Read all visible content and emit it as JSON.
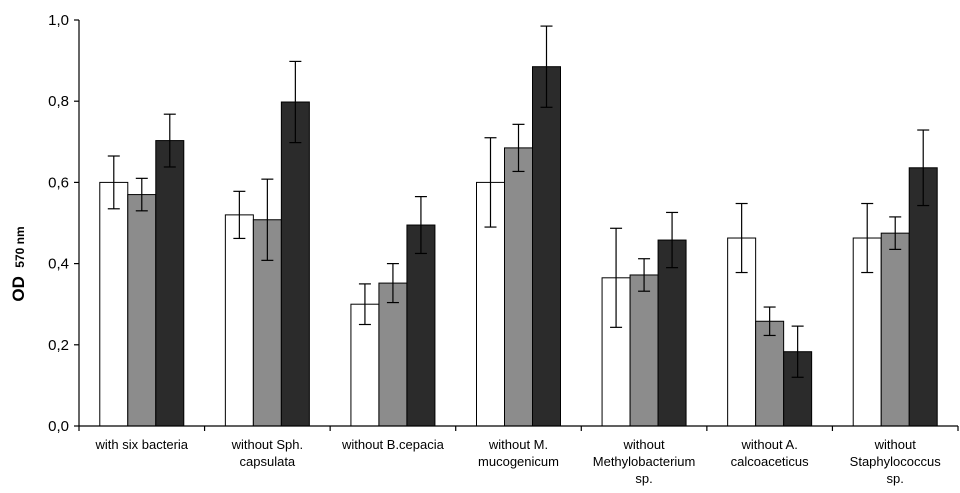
{
  "chart_data": {
    "type": "bar",
    "ylabel_main": "OD",
    "ylabel_sub": "570 nm",
    "ylim": [
      0,
      1.0
    ],
    "yticks": [
      "0,0",
      "0,2",
      "0,4",
      "0,6",
      "0,8",
      "1,0"
    ],
    "categories": [
      [
        "with six bacteria"
      ],
      [
        "without Sph.",
        "capsulata"
      ],
      [
        "without B.cepacia"
      ],
      [
        "without M.",
        "mucogenicum"
      ],
      [
        "without",
        "Methylobacterium",
        "sp."
      ],
      [
        "without A.",
        "calcoaceticus"
      ],
      [
        "without",
        "Staphylococcus",
        "sp."
      ]
    ],
    "series": [
      {
        "color": "#ffffff",
        "values": [
          0.6,
          0.52,
          0.3,
          0.6,
          0.365,
          0.463,
          0.463
        ],
        "errors": [
          0.065,
          0.058,
          0.05,
          0.11,
          0.122,
          0.085,
          0.085
        ]
      },
      {
        "color": "#8c8c8c",
        "values": [
          0.57,
          0.508,
          0.352,
          0.685,
          0.372,
          0.258,
          0.475
        ],
        "errors": [
          0.04,
          0.1,
          0.048,
          0.058,
          0.04,
          0.035,
          0.04
        ]
      },
      {
        "color": "#2b2b2b",
        "values": [
          0.703,
          0.798,
          0.495,
          0.885,
          0.458,
          0.183,
          0.636
        ],
        "errors": [
          0.065,
          0.1,
          0.07,
          0.1,
          0.068,
          0.063,
          0.093
        ]
      }
    ],
    "grid": false,
    "legend": "none"
  }
}
